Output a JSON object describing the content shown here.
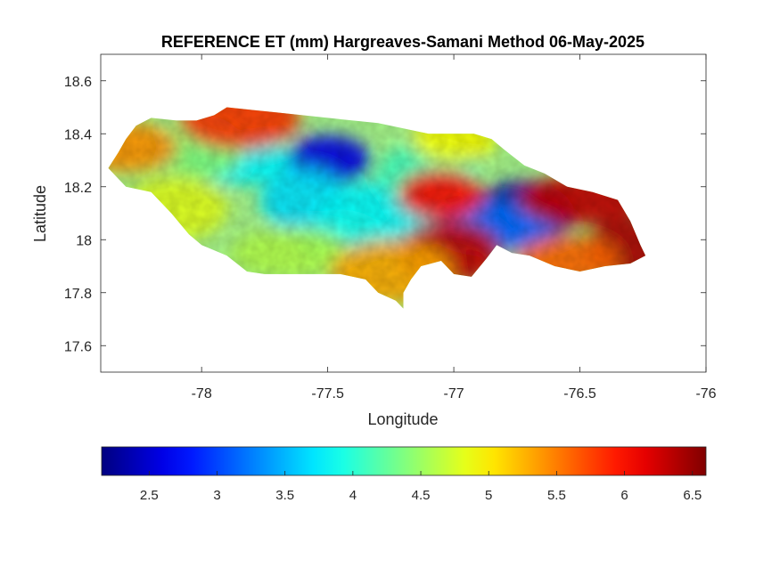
{
  "chart_data": {
    "type": "heatmap",
    "title": "REFERENCE ET (mm) Hargreaves-Samani Method  06-May-2025",
    "xlabel": "Longitude",
    "ylabel": "Latitude",
    "xlim": [
      -78.4,
      -76
    ],
    "ylim": [
      17.5,
      18.7
    ],
    "xticks": [
      -78,
      -77.5,
      -77,
      -76.5,
      -76
    ],
    "xtick_labels": [
      "-78",
      "-77.5",
      "-77",
      "-76.5",
      "-76"
    ],
    "yticks": [
      17.6,
      17.8,
      18,
      18.2,
      18.4,
      18.6
    ],
    "ytick_labels": [
      "17.6",
      "17.8",
      "18",
      "18.2",
      "18.4",
      "18.6"
    ],
    "grid": false,
    "colormap": "jet",
    "colorbar": {
      "orientation": "horizontal",
      "position": "below",
      "range": [
        2.15,
        6.6
      ],
      "ticks": [
        2.5,
        3,
        3.5,
        4,
        4.5,
        5,
        5.5,
        6,
        6.5
      ],
      "tick_labels": [
        "2.5",
        "3",
        "3.5",
        "4",
        "4.5",
        "5",
        "5.5",
        "6",
        "6.5"
      ]
    },
    "region_outline_lonlat": [
      [
        -78.37,
        18.27
      ],
      [
        -78.33,
        18.33
      ],
      [
        -78.3,
        18.38
      ],
      [
        -78.26,
        18.43
      ],
      [
        -78.2,
        18.46
      ],
      [
        -78.1,
        18.45
      ],
      [
        -78.02,
        18.45
      ],
      [
        -77.95,
        18.47
      ],
      [
        -77.9,
        18.5
      ],
      [
        -77.8,
        18.49
      ],
      [
        -77.7,
        18.48
      ],
      [
        -77.6,
        18.47
      ],
      [
        -77.5,
        18.46
      ],
      [
        -77.4,
        18.45
      ],
      [
        -77.3,
        18.44
      ],
      [
        -77.2,
        18.42
      ],
      [
        -77.1,
        18.4
      ],
      [
        -77.0,
        18.4
      ],
      [
        -76.92,
        18.4
      ],
      [
        -76.85,
        18.38
      ],
      [
        -76.8,
        18.34
      ],
      [
        -76.72,
        18.28
      ],
      [
        -76.64,
        18.25
      ],
      [
        -76.55,
        18.2
      ],
      [
        -76.45,
        18.18
      ],
      [
        -76.35,
        18.15
      ],
      [
        -76.3,
        18.07
      ],
      [
        -76.26,
        17.98
      ],
      [
        -76.24,
        17.94
      ],
      [
        -76.3,
        17.91
      ],
      [
        -76.4,
        17.9
      ],
      [
        -76.5,
        17.88
      ],
      [
        -76.6,
        17.9
      ],
      [
        -76.7,
        17.94
      ],
      [
        -76.77,
        17.95
      ],
      [
        -76.83,
        17.98
      ],
      [
        -76.87,
        17.93
      ],
      [
        -76.93,
        17.86
      ],
      [
        -77.0,
        17.87
      ],
      [
        -77.05,
        17.92
      ],
      [
        -77.13,
        17.9
      ],
      [
        -77.17,
        17.85
      ],
      [
        -77.2,
        17.8
      ],
      [
        -77.2,
        17.74
      ],
      [
        -77.23,
        17.77
      ],
      [
        -77.3,
        17.8
      ],
      [
        -77.35,
        17.85
      ],
      [
        -77.45,
        17.87
      ],
      [
        -77.55,
        17.87
      ],
      [
        -77.65,
        17.87
      ],
      [
        -77.75,
        17.87
      ],
      [
        -77.82,
        17.88
      ],
      [
        -77.9,
        17.94
      ],
      [
        -78.0,
        17.98
      ],
      [
        -78.05,
        18.02
      ],
      [
        -78.12,
        18.1
      ],
      [
        -78.2,
        18.18
      ],
      [
        -78.3,
        18.2
      ],
      [
        -78.37,
        18.27
      ]
    ],
    "value_hotspots": [
      {
        "lon": -77.5,
        "lat": 18.3,
        "value": 2.6
      },
      {
        "lon": -76.73,
        "lat": 18.1,
        "value": 2.3
      },
      {
        "lon": -76.85,
        "lat": 18.05,
        "value": 3.2
      },
      {
        "lon": -77.6,
        "lat": 18.15,
        "value": 3.7
      },
      {
        "lon": -77.85,
        "lat": 18.3,
        "value": 3.8
      },
      {
        "lon": -77.3,
        "lat": 18.1,
        "value": 3.8
      },
      {
        "lon": -77.45,
        "lat": 18.0,
        "value": 3.9
      },
      {
        "lon": -77.1,
        "lat": 18.25,
        "value": 4.1
      },
      {
        "lon": -77.65,
        "lat": 17.95,
        "value": 4.6
      },
      {
        "lon": -78.0,
        "lat": 18.35,
        "value": 4.4
      },
      {
        "lon": -78.3,
        "lat": 18.35,
        "value": 5.4
      },
      {
        "lon": -77.85,
        "lat": 18.46,
        "value": 5.8
      },
      {
        "lon": -77.05,
        "lat": 18.17,
        "value": 6.0
      },
      {
        "lon": -77.02,
        "lat": 17.95,
        "value": 6.3
      },
      {
        "lon": -76.5,
        "lat": 18.15,
        "value": 6.3
      },
      {
        "lon": -76.3,
        "lat": 17.97,
        "value": 6.4
      },
      {
        "lon": -76.55,
        "lat": 17.92,
        "value": 5.6
      },
      {
        "lon": -77.25,
        "lat": 17.88,
        "value": 5.3
      },
      {
        "lon": -77.0,
        "lat": 18.38,
        "value": 4.9
      },
      {
        "lon": -78.1,
        "lat": 18.12,
        "value": 4.8
      }
    ]
  }
}
